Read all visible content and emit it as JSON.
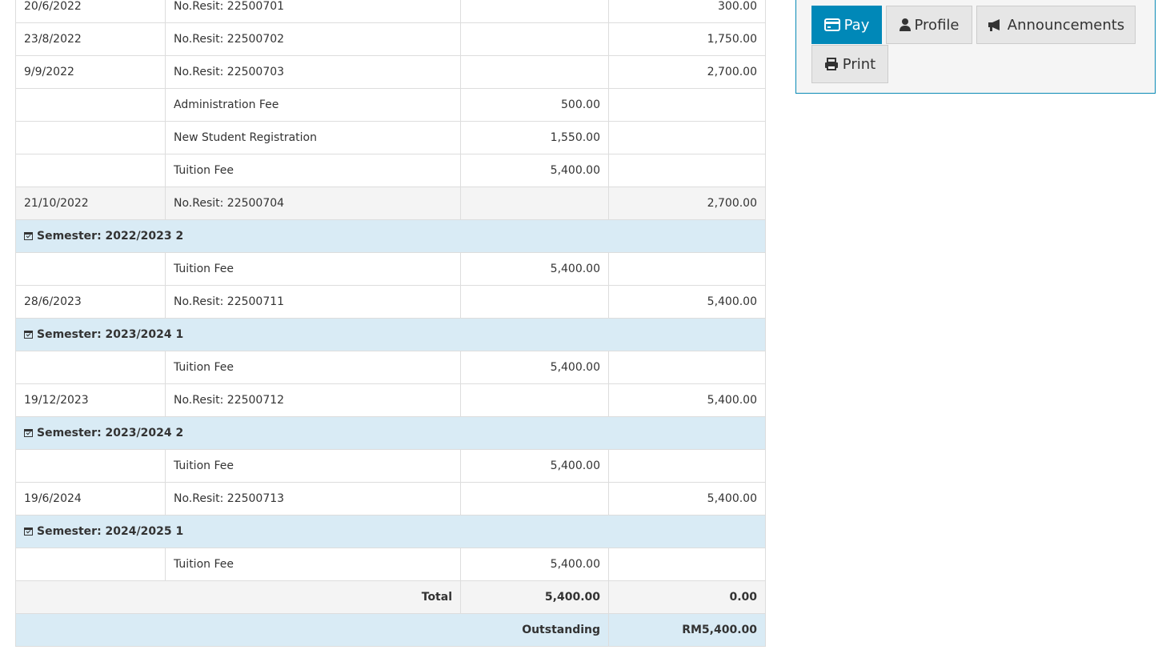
{
  "actions": {
    "pay": "Pay",
    "profile": "Profile",
    "announcements": "Announcements",
    "print": "Print",
    "accent": "#0088b8"
  },
  "rows": [
    {
      "type": "entry",
      "date": "20/6/2022",
      "desc": "No.Resit: 22500701",
      "debit": "",
      "credit": "300.00"
    },
    {
      "type": "entry",
      "date": "23/8/2022",
      "desc": "No.Resit: 22500702",
      "debit": "",
      "credit": "1,750.00"
    },
    {
      "type": "entry",
      "date": "9/9/2022",
      "desc": "No.Resit: 22500703",
      "debit": "",
      "credit": "2,700.00"
    },
    {
      "type": "entry",
      "date": "",
      "desc": "Administration Fee",
      "debit": "500.00",
      "credit": ""
    },
    {
      "type": "entry",
      "date": "",
      "desc": "New Student Registration",
      "debit": "1,550.00",
      "credit": ""
    },
    {
      "type": "entry",
      "date": "",
      "desc": "Tuition Fee",
      "debit": "5,400.00",
      "credit": ""
    },
    {
      "type": "entry",
      "alt": true,
      "date": "21/10/2022",
      "desc": "No.Resit: 22500704",
      "debit": "",
      "credit": "2,700.00"
    },
    {
      "type": "semester",
      "label": "Semester: 2022/2023 2"
    },
    {
      "type": "entry",
      "date": "",
      "desc": "Tuition Fee",
      "debit": "5,400.00",
      "credit": ""
    },
    {
      "type": "entry",
      "date": "28/6/2023",
      "desc": "No.Resit: 22500711",
      "debit": "",
      "credit": "5,400.00"
    },
    {
      "type": "semester",
      "label": "Semester: 2023/2024 1"
    },
    {
      "type": "entry",
      "date": "",
      "desc": "Tuition Fee",
      "debit": "5,400.00",
      "credit": ""
    },
    {
      "type": "entry",
      "date": "19/12/2023",
      "desc": "No.Resit: 22500712",
      "debit": "",
      "credit": "5,400.00"
    },
    {
      "type": "semester",
      "label": "Semester: 2023/2024 2"
    },
    {
      "type": "entry",
      "date": "",
      "desc": "Tuition Fee",
      "debit": "5,400.00",
      "credit": ""
    },
    {
      "type": "entry",
      "date": "19/6/2024",
      "desc": "No.Resit: 22500713",
      "debit": "",
      "credit": "5,400.00"
    },
    {
      "type": "semester",
      "label": "Semester: 2024/2025 1"
    },
    {
      "type": "entry",
      "date": "",
      "desc": "Tuition Fee",
      "debit": "5,400.00",
      "credit": ""
    }
  ],
  "total": {
    "label": "Total",
    "debit": "5,400.00",
    "credit": "0.00"
  },
  "outstanding": {
    "label": "Outstanding",
    "amount": "RM5,400.00"
  }
}
